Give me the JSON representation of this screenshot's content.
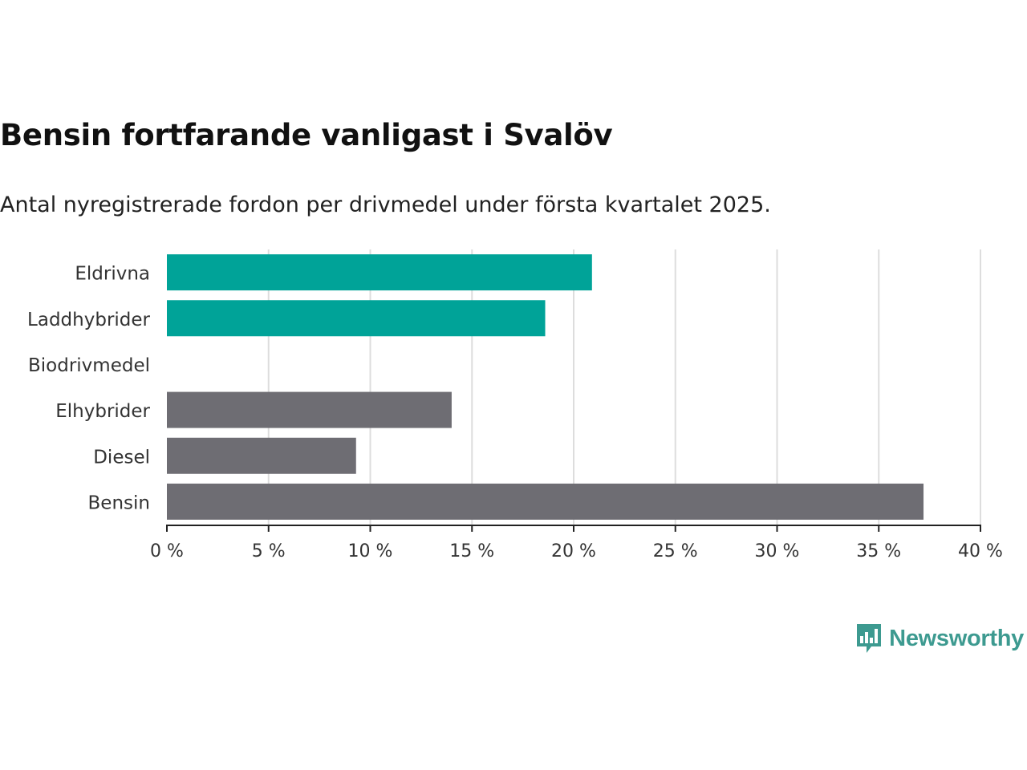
{
  "header": {
    "title": "Bensin fortfarande vanligast i Svalöv",
    "subtitle": "Antal nyregistrerade fordon per drivmedel under första kvartalet 2025."
  },
  "brand": {
    "name": "Newsworthy",
    "icon": "newsworthy-logo-icon",
    "color": "#3d9a90"
  },
  "chart_data": {
    "type": "bar",
    "orientation": "horizontal",
    "categories": [
      "Eldrivna",
      "Laddhybrider",
      "Biodrivmedel",
      "Elhybrider",
      "Diesel",
      "Bensin"
    ],
    "values": [
      20.9,
      18.6,
      0,
      14.0,
      9.3,
      37.2
    ],
    "colors": [
      "#00a398",
      "#00a398",
      "#00a398",
      "#6e6d73",
      "#6e6d73",
      "#6e6d73"
    ],
    "xlim": [
      0,
      40
    ],
    "xticks": [
      0,
      5,
      10,
      15,
      20,
      25,
      30,
      35,
      40
    ],
    "xtick_labels": [
      "0 %",
      "5 %",
      "10 %",
      "15 %",
      "20 %",
      "25 %",
      "30 %",
      "35 %",
      "40 %"
    ],
    "grid": true,
    "grid_color": "#dddddd",
    "legend": "none"
  }
}
